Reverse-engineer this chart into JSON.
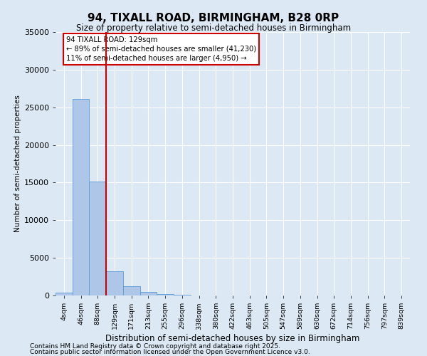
{
  "title": "94, TIXALL ROAD, BIRMINGHAM, B28 0RP",
  "subtitle": "Size of property relative to semi-detached houses in Birmingham",
  "xlabel": "Distribution of semi-detached houses by size in Birmingham",
  "ylabel": "Number of semi-detached properties",
  "bin_labels": [
    "4sqm",
    "46sqm",
    "88sqm",
    "129sqm",
    "171sqm",
    "213sqm",
    "255sqm",
    "296sqm",
    "338sqm",
    "380sqm",
    "422sqm",
    "463sqm",
    "505sqm",
    "547sqm",
    "589sqm",
    "630sqm",
    "672sqm",
    "714sqm",
    "756sqm",
    "797sqm",
    "839sqm"
  ],
  "bar_values": [
    400,
    26100,
    15100,
    3200,
    1200,
    450,
    200,
    50,
    0,
    0,
    0,
    0,
    0,
    0,
    0,
    0,
    0,
    0,
    0,
    0,
    0
  ],
  "bar_color": "#aec6e8",
  "bar_edge_color": "#5b9bd5",
  "annotation_line1": "94 TIXALL ROAD: 129sqm",
  "annotation_line2": "← 89% of semi-detached houses are smaller (41,230)",
  "annotation_line3": "11% of semi-detached houses are larger (4,950) →",
  "annotation_box_color": "#ffffff",
  "annotation_box_edge": "#cc0000",
  "red_line_color": "#cc0000",
  "ylim": [
    0,
    35000
  ],
  "yticks": [
    0,
    5000,
    10000,
    15000,
    20000,
    25000,
    30000,
    35000
  ],
  "bg_color": "#dce9f5",
  "footer1": "Contains HM Land Registry data © Crown copyright and database right 2025.",
  "footer2": "Contains public sector information licensed under the Open Government Licence v3.0."
}
